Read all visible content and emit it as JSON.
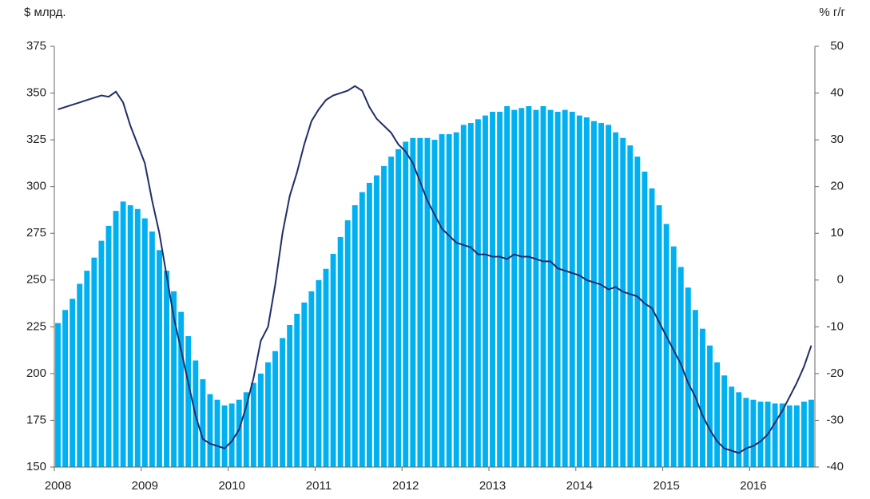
{
  "chart_data": {
    "type": "bar_line",
    "y_label": "$ млрд.",
    "y2_label": "% г/г",
    "categories": [
      "2008",
      null,
      null,
      null,
      null,
      null,
      null,
      null,
      null,
      null,
      null,
      null,
      "2009",
      null,
      null,
      null,
      null,
      null,
      null,
      null,
      null,
      null,
      null,
      null,
      "2010",
      null,
      null,
      null,
      null,
      null,
      null,
      null,
      null,
      null,
      null,
      null,
      "2011",
      null,
      null,
      null,
      null,
      null,
      null,
      null,
      null,
      null,
      null,
      null,
      "2012",
      null,
      null,
      null,
      null,
      null,
      null,
      null,
      null,
      null,
      null,
      null,
      "2013",
      null,
      null,
      null,
      null,
      null,
      null,
      null,
      null,
      null,
      null,
      null,
      "2014",
      null,
      null,
      null,
      null,
      null,
      null,
      null,
      null,
      null,
      null,
      null,
      "2015",
      null,
      null,
      null,
      null,
      null,
      null,
      null,
      null,
      null,
      null,
      null,
      "2016",
      null,
      null,
      null,
      null,
      null,
      null,
      null,
      null
    ],
    "series": [
      {
        "type": "bar",
        "color": "#00b0f0",
        "values": [
          227,
          234,
          240,
          248,
          255,
          262,
          271,
          279,
          287,
          292,
          290,
          288,
          283,
          276,
          266,
          255,
          244,
          233,
          220,
          207,
          197,
          189,
          186,
          183,
          184,
          186,
          190,
          195,
          200,
          206,
          212,
          219,
          226,
          232,
          238,
          244,
          250,
          256,
          264,
          273,
          282,
          290,
          297,
          302,
          306,
          311,
          316,
          320,
          324,
          326,
          326,
          326,
          325,
          328,
          328,
          329,
          333,
          334,
          336,
          338,
          340,
          340,
          343,
          341,
          342,
          343,
          341,
          343,
          341,
          340,
          341,
          340,
          338,
          337,
          335,
          334,
          333,
          329,
          326,
          322,
          316,
          308,
          299,
          290,
          280,
          268,
          257,
          246,
          234,
          224,
          215,
          206,
          199,
          193,
          190,
          187,
          186,
          185,
          185,
          184,
          184,
          183,
          183,
          185,
          186
        ]
      },
      {
        "type": "line",
        "axis": "y2",
        "color": "#1f2d6b",
        "values": [
          36.5,
          37,
          37.5,
          38,
          38.5,
          39,
          39.5,
          39.2,
          40.3,
          38,
          33,
          29,
          25,
          17,
          10,
          1,
          -8,
          -15,
          -22,
          -29,
          -34,
          -35,
          -35.5,
          -36,
          -34.5,
          -32,
          -27,
          -21,
          -13,
          -10,
          -1,
          10,
          18,
          23,
          29,
          34,
          36.5,
          38.5,
          39.5,
          40,
          40.5,
          41.5,
          40.5,
          37,
          34.5,
          33,
          31.5,
          29,
          27.5,
          25,
          21,
          17,
          14,
          11,
          9.5,
          8,
          7.5,
          7,
          5.5,
          5.5,
          5,
          5,
          4.5,
          5.5,
          5,
          5,
          4.5,
          4,
          4,
          2.5,
          2,
          1.5,
          1,
          0,
          -0.5,
          -1,
          -2,
          -1.5,
          -2.5,
          -3,
          -3.5,
          -5,
          -6,
          -9,
          -12,
          -15,
          -18,
          -22,
          -25,
          -29,
          -32,
          -34.5,
          -36,
          -36.5,
          -37,
          -36,
          -35.5,
          -34.5,
          -33,
          -30.5,
          -28,
          -25,
          -22,
          -18.5,
          -14
        ]
      }
    ],
    "ylim": [
      150,
      375
    ],
    "yticks": [
      150,
      175,
      200,
      225,
      250,
      275,
      300,
      325,
      350,
      375
    ],
    "y2lim": [
      -40,
      50
    ],
    "y2ticks": [
      -40,
      -30,
      -20,
      -10,
      0,
      10,
      20,
      30,
      40,
      50
    ]
  }
}
